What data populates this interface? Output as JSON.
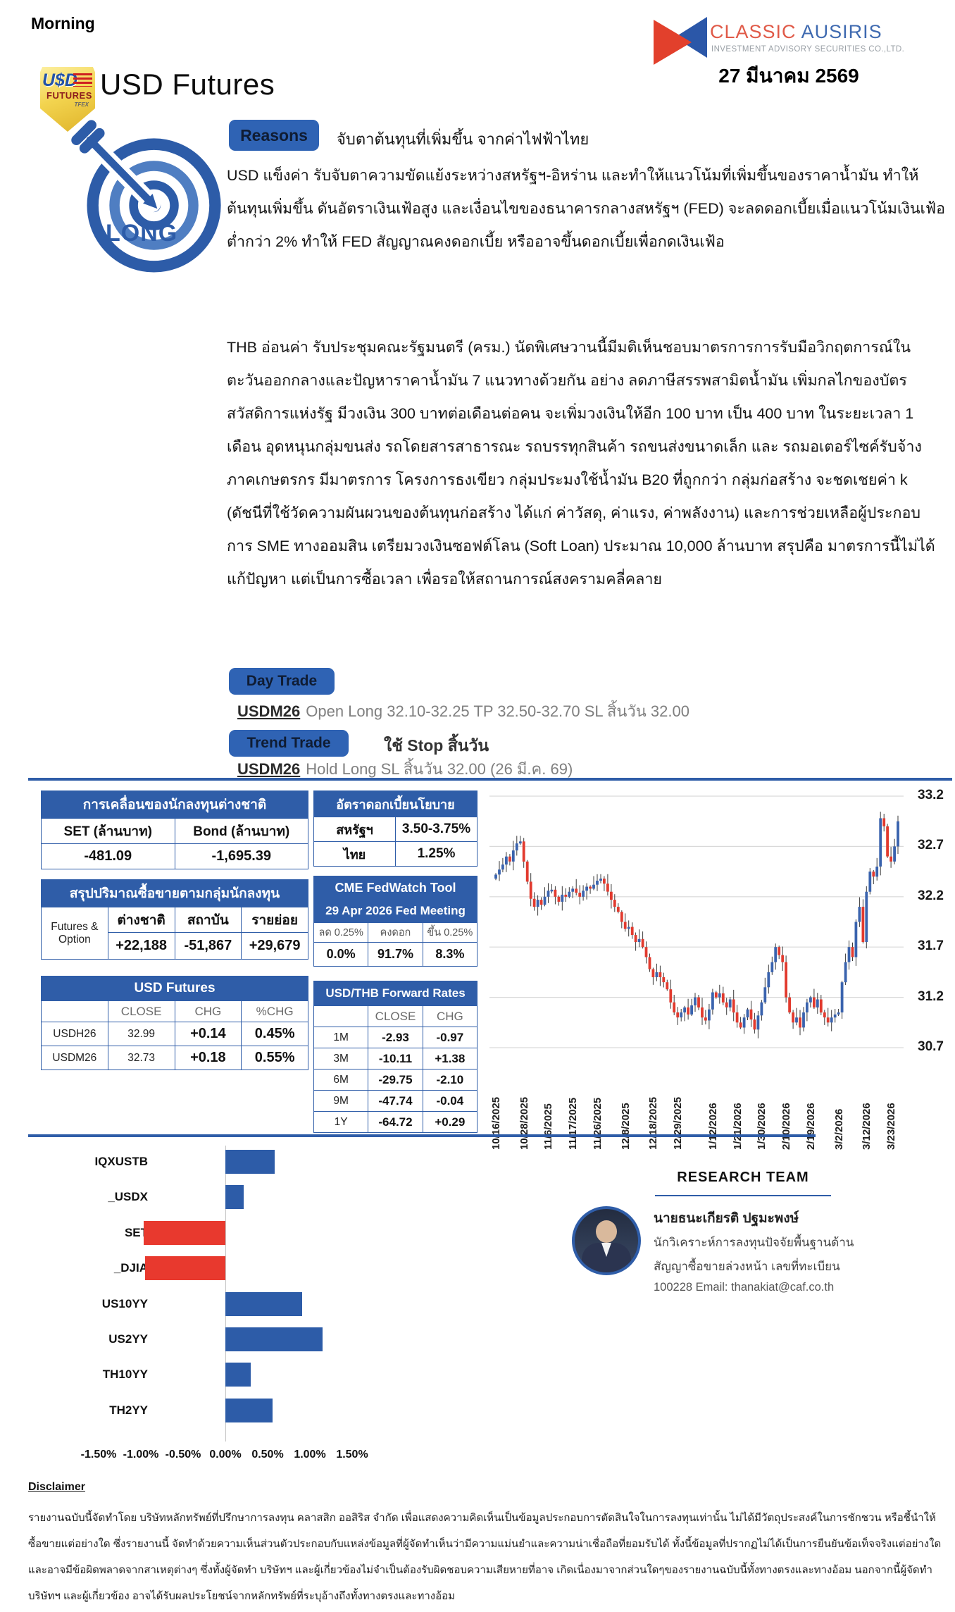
{
  "header": {
    "morning": "Morning",
    "brand_name_1": "CLASSIC",
    "brand_name_2": "AUSIRIS",
    "brand_subtitle": "INVESTMENT ADVISORY SECURITIES CO.,LTD.",
    "date": "27 มีนาคม 2569"
  },
  "product": {
    "badge_line1": "U$D",
    "badge_line2": "FUTURES",
    "badge_line3": "TFEX",
    "title": "USD Futures",
    "stance": "LONG"
  },
  "reasons": {
    "badge": "Reasons",
    "headline": "จับตาต้นทุนที่เพิ่มขึ้น จากค่าไฟฟ้าไทย",
    "paragraph1": "USD แข็งค่า  รับจับตาความขัดแย้งระหว่างสหรัฐฯ-อิหร่าน และทำให้แนวโน้มที่เพิ่มขึ้นของราคาน้ำมัน ทำให้ต้นทุนเพิ่มขึ้น ดันอัตราเงินเฟ้อสูง และเงื่อนไขของธนาคารกลางสหรัฐฯ (FED) จะลดดอกเบี้ยเมื่อแนวโน้มเงินเฟ้อต่ำกว่า 2% ทำให้ FED สัญญาณคงดอกเบี้ย หรืออาจขึ้นดอกเบี้ยเพื่อกดเงินเฟ้อ",
    "paragraph2": "THB อ่อนค่า รับประชุมคณะรัฐมนตรี (ครม.) นัดพิเศษวานนี้มีมติเห็นชอบมาตรการการรับมือวิกฤตการณ์ในตะวันออกกลางและปัญหาราคาน้ำมัน 7 แนวทางด้วยกัน อย่าง ลดภาษีสรรพสามิตน้ำมัน เพิ่มกลไกของบัตรสวัสดิการแห่งรัฐ มีวงเงิน 300 บาทต่อเดือนต่อคน จะเพิ่มวงเงินให้อีก 100 บาท เป็น 400 บาท ในระยะเวลา 1 เดือน อุดหนุนกลุ่มขนส่ง รถโดยสารสาธารณะ รถบรรทุกสินค้า รถขนส่งขนาดเล็ก และ รถมอเตอร์ไซค์รับจ้าง ภาคเกษตรกร มีมาตรการ โครงการธงเขียว กลุ่มประมงใช้น้ำมัน B20 ที่ถูกกว่า กลุ่มก่อสร้าง จะชดเชยค่า k (ดัชนีที่ใช้วัดความผันผวนของต้นทุนก่อสร้าง ได้แก่ ค่าวัสดุ, ค่าแรง, ค่าพลังงาน) และการช่วยเหลือผู้ประกอบการ SME ทางออมสิน เตรียมวงเงินซอฟต์โลน (Soft Loan) ประมาณ 10,000 ล้านบาท สรุปคือ มาตรการนี้ไม่ได้แก้ปัญหา แต่เป็นการซื้อเวลา เพื่อรอให้สถานการณ์สงครามคลี่คลาย"
  },
  "trades": {
    "day_badge": "Day Trade",
    "day_symbol": "USDM26",
    "day_detail": "Open Long 32.10-32.25 TP 32.50-32.70 SL สิ้นวัน 32.00",
    "trend_badge": "Trend Trade",
    "trend_note": "ใช้ Stop สิ้นวัน",
    "hold_symbol": "USDM26",
    "hold_detail": "Hold Long SL สิ้นวัน 32.00 (26 มี.ค. 69)"
  },
  "tables": {
    "foreign_flow": {
      "title": "การเคลื่อนของนักลงทุนต่างชาติ",
      "headers": [
        "SET (ล้านบาท)",
        "Bond (ล้านบาท)"
      ],
      "values": [
        "-481.09",
        "-1,695.39"
      ]
    },
    "volume_by_investor": {
      "title": "สรุปปริมาณซื้อขายตามกลุ่มนักลงทุน",
      "row_label_line1": "Futures &",
      "row_label_line2": "Option",
      "headers": [
        "ต่างชาติ",
        "สถาบัน",
        "รายย่อย"
      ],
      "values": [
        "+22,188",
        "-51,867",
        "+29,679"
      ]
    },
    "usd_futures": {
      "title": "USD Futures",
      "headers": [
        "",
        "CLOSE",
        "CHG",
        "%CHG"
      ],
      "rows": [
        [
          "USDH26",
          "32.99",
          "+0.14",
          "0.45%"
        ],
        [
          "USDM26",
          "32.73",
          "+0.18",
          "0.55%"
        ]
      ]
    },
    "policy_rate": {
      "title": "อัตราดอกเบี้ยนโยบาย",
      "rows": [
        [
          "สหรัฐฯ",
          "3.50-3.75%"
        ],
        [
          "ไทย",
          "1.25%"
        ]
      ]
    },
    "fedwatch": {
      "title_line1": "CME FedWatch Tool",
      "title_line2": "29 Apr 2026 Fed Meeting",
      "headers": [
        "ลด 0.25%",
        "คงดอก",
        "ขึ้น 0.25%"
      ],
      "values": [
        "0.0%",
        "91.7%",
        "8.3%"
      ]
    },
    "forward_rates": {
      "title": "USD/THB Forward Rates",
      "headers": [
        "",
        "CLOSE",
        "CHG"
      ],
      "rows": [
        [
          "1M",
          "-2.93",
          "-0.97"
        ],
        [
          "3M",
          "-10.11",
          "+1.38"
        ],
        [
          "6M",
          "-29.75",
          "-2.10"
        ],
        [
          "9M",
          "-47.74",
          "-0.04"
        ],
        [
          "1Y",
          "-64.72",
          "+0.29"
        ]
      ]
    }
  },
  "chart_data": [
    {
      "type": "candlestick",
      "ylim": [
        30.7,
        33.2
      ],
      "yticks": [
        30.7,
        31.2,
        31.7,
        32.2,
        32.7,
        33.2
      ],
      "grid": true,
      "legend": "none",
      "x_tick_labels": [
        "10/16/2025",
        "10/28/2025",
        "11/6/2025",
        "11/17/2025",
        "11/26/2025",
        "12/8/2025",
        "12/18/2025",
        "12/29/2025",
        "1/12/2026",
        "1/21/2026",
        "1/30/2026",
        "2/10/2026",
        "2/19/2026",
        "3/2/2026",
        "3/12/2026",
        "3/23/2026"
      ],
      "x_tick_indices": [
        0,
        8,
        15,
        22,
        29,
        37,
        45,
        52,
        62,
        69,
        76,
        83,
        90,
        98,
        106,
        113
      ],
      "closes": [
        32.42,
        32.47,
        32.52,
        32.6,
        32.55,
        32.66,
        32.73,
        32.75,
        32.55,
        32.35,
        32.18,
        32.1,
        32.17,
        32.12,
        32.2,
        32.26,
        32.27,
        32.2,
        32.15,
        32.22,
        32.2,
        32.25,
        32.28,
        32.24,
        32.2,
        32.26,
        32.3,
        32.28,
        32.32,
        32.36,
        32.38,
        32.33,
        32.25,
        32.17,
        32.1,
        32.05,
        31.95,
        31.88,
        31.9,
        31.82,
        31.75,
        31.78,
        31.7,
        31.6,
        31.48,
        31.4,
        31.45,
        31.4,
        31.35,
        31.28,
        31.15,
        31.05,
        31.0,
        31.05,
        31.1,
        31.03,
        31.12,
        31.2,
        31.1,
        31.0,
        30.97,
        31.08,
        31.25,
        31.2,
        31.24,
        31.15,
        31.1,
        31.18,
        31.05,
        30.95,
        30.9,
        31.0,
        31.08,
        30.98,
        30.88,
        31.02,
        31.15,
        31.3,
        31.45,
        31.55,
        31.7,
        31.62,
        31.55,
        31.2,
        31.05,
        30.95,
        31.0,
        30.9,
        31.05,
        31.15,
        31.2,
        31.1,
        31.18,
        31.05,
        31.0,
        30.95,
        31.0,
        31.03,
        31.05,
        31.35,
        31.55,
        31.7,
        31.6,
        31.95,
        32.1,
        31.75,
        32.25,
        32.45,
        32.4,
        32.5,
        32.98,
        32.9,
        32.6,
        32.55,
        32.7,
        32.95
      ],
      "up_color": "#3a63ae",
      "down_color": "#e23a2e"
    },
    {
      "type": "bar",
      "orientation": "horizontal",
      "categories": [
        "IQXUSTB",
        "_USDX",
        "SET",
        "_DJIA",
        "US10YY",
        "US2YY",
        "TH10YY",
        "TH2YY"
      ],
      "values": [
        0.58,
        0.22,
        -0.97,
        -0.95,
        0.91,
        1.15,
        0.3,
        0.56
      ],
      "value_unit": "%",
      "xlim": [
        -1.75,
        1.75
      ],
      "xticks": [
        "-1.50%",
        "-1.00%",
        "-0.50%",
        "0.00%",
        "0.50%",
        "1.00%",
        "1.50%"
      ],
      "xtick_values": [
        -1.5,
        -1.0,
        -0.5,
        0,
        0.5,
        1.0,
        1.5
      ],
      "positive_color": "#2d5ca8",
      "negative_color": "#e8392e"
    }
  ],
  "research_team": {
    "title": "RESEARCH TEAM",
    "name": "นายธนะเกียรติ ปฐมะพงษ์",
    "role_line1": "นักวิเคราะห์การลงทุนปัจจัยพื้นฐานด้าน",
    "role_line2": "สัญญาซื้อขายล่วงหน้า เลขที่ทะเบียน",
    "contact_line": "100228 Email: thanakiat@caf.co.th"
  },
  "disclaimer": {
    "heading": "Disclaimer",
    "text": "รายงานฉบับนี้จัดทำโดย บริษัทหลักทรัพย์ที่ปรึกษาการลงทุน คลาสสิก ออสิริส จำกัด เพื่อแสดงความคิดเห็นเป็นข้อมูลประกอบการตัดสินใจในการลงทุนเท่านั้น ไม่ได้มีวัตถุประสงค์ในการชักชวน หรือชี้นำให้ซื้อขายแต่อย่างใด ซึ่งรายงานนี้ จัดทำด้วยความเห็นส่วนตัวประกอบกับแหล่งข้อมูลที่ผู้จัดทำเห็นว่ามีความแม่นยำและความน่าเชื่อถือที่ยอมรับได้ ทั้งนี้ข้อมูลที่ปรากฏไม่ได้เป็นการยืนยันข้อเท็จจริงแต่อย่างใดและอาจมีข้อผิดพลาดจากสาเหตุต่างๆ ซึ่งทั้งผู้จัดทำ บริษัทฯ และผู้เกี่ยวข้องไม่จำเป็นต้องรับผิดชอบความเสียหายที่อาจ เกิดเนื่องมาจากส่วนใดๆของรายงานฉบับนี้ทั้งทางตรงและทางอ้อม นอกจากนี้ผู้จัดทำ บริษัทฯ และผู้เกี่ยวข้อง อาจได้รับผลประโยชน์จากหลักทรัพย์ที่ระบุอ้างถึงทั้งทางตรงและทางอ้อม"
  },
  "colors": {
    "accent_blue": "#2f5da8",
    "badge_blue": "#2f63b4",
    "brand_red": "#e05a48",
    "brand_blue": "#3f6ab0",
    "gold": "#f3d44f",
    "candle_up": "#3a63ae",
    "candle_down": "#e23a2e"
  }
}
